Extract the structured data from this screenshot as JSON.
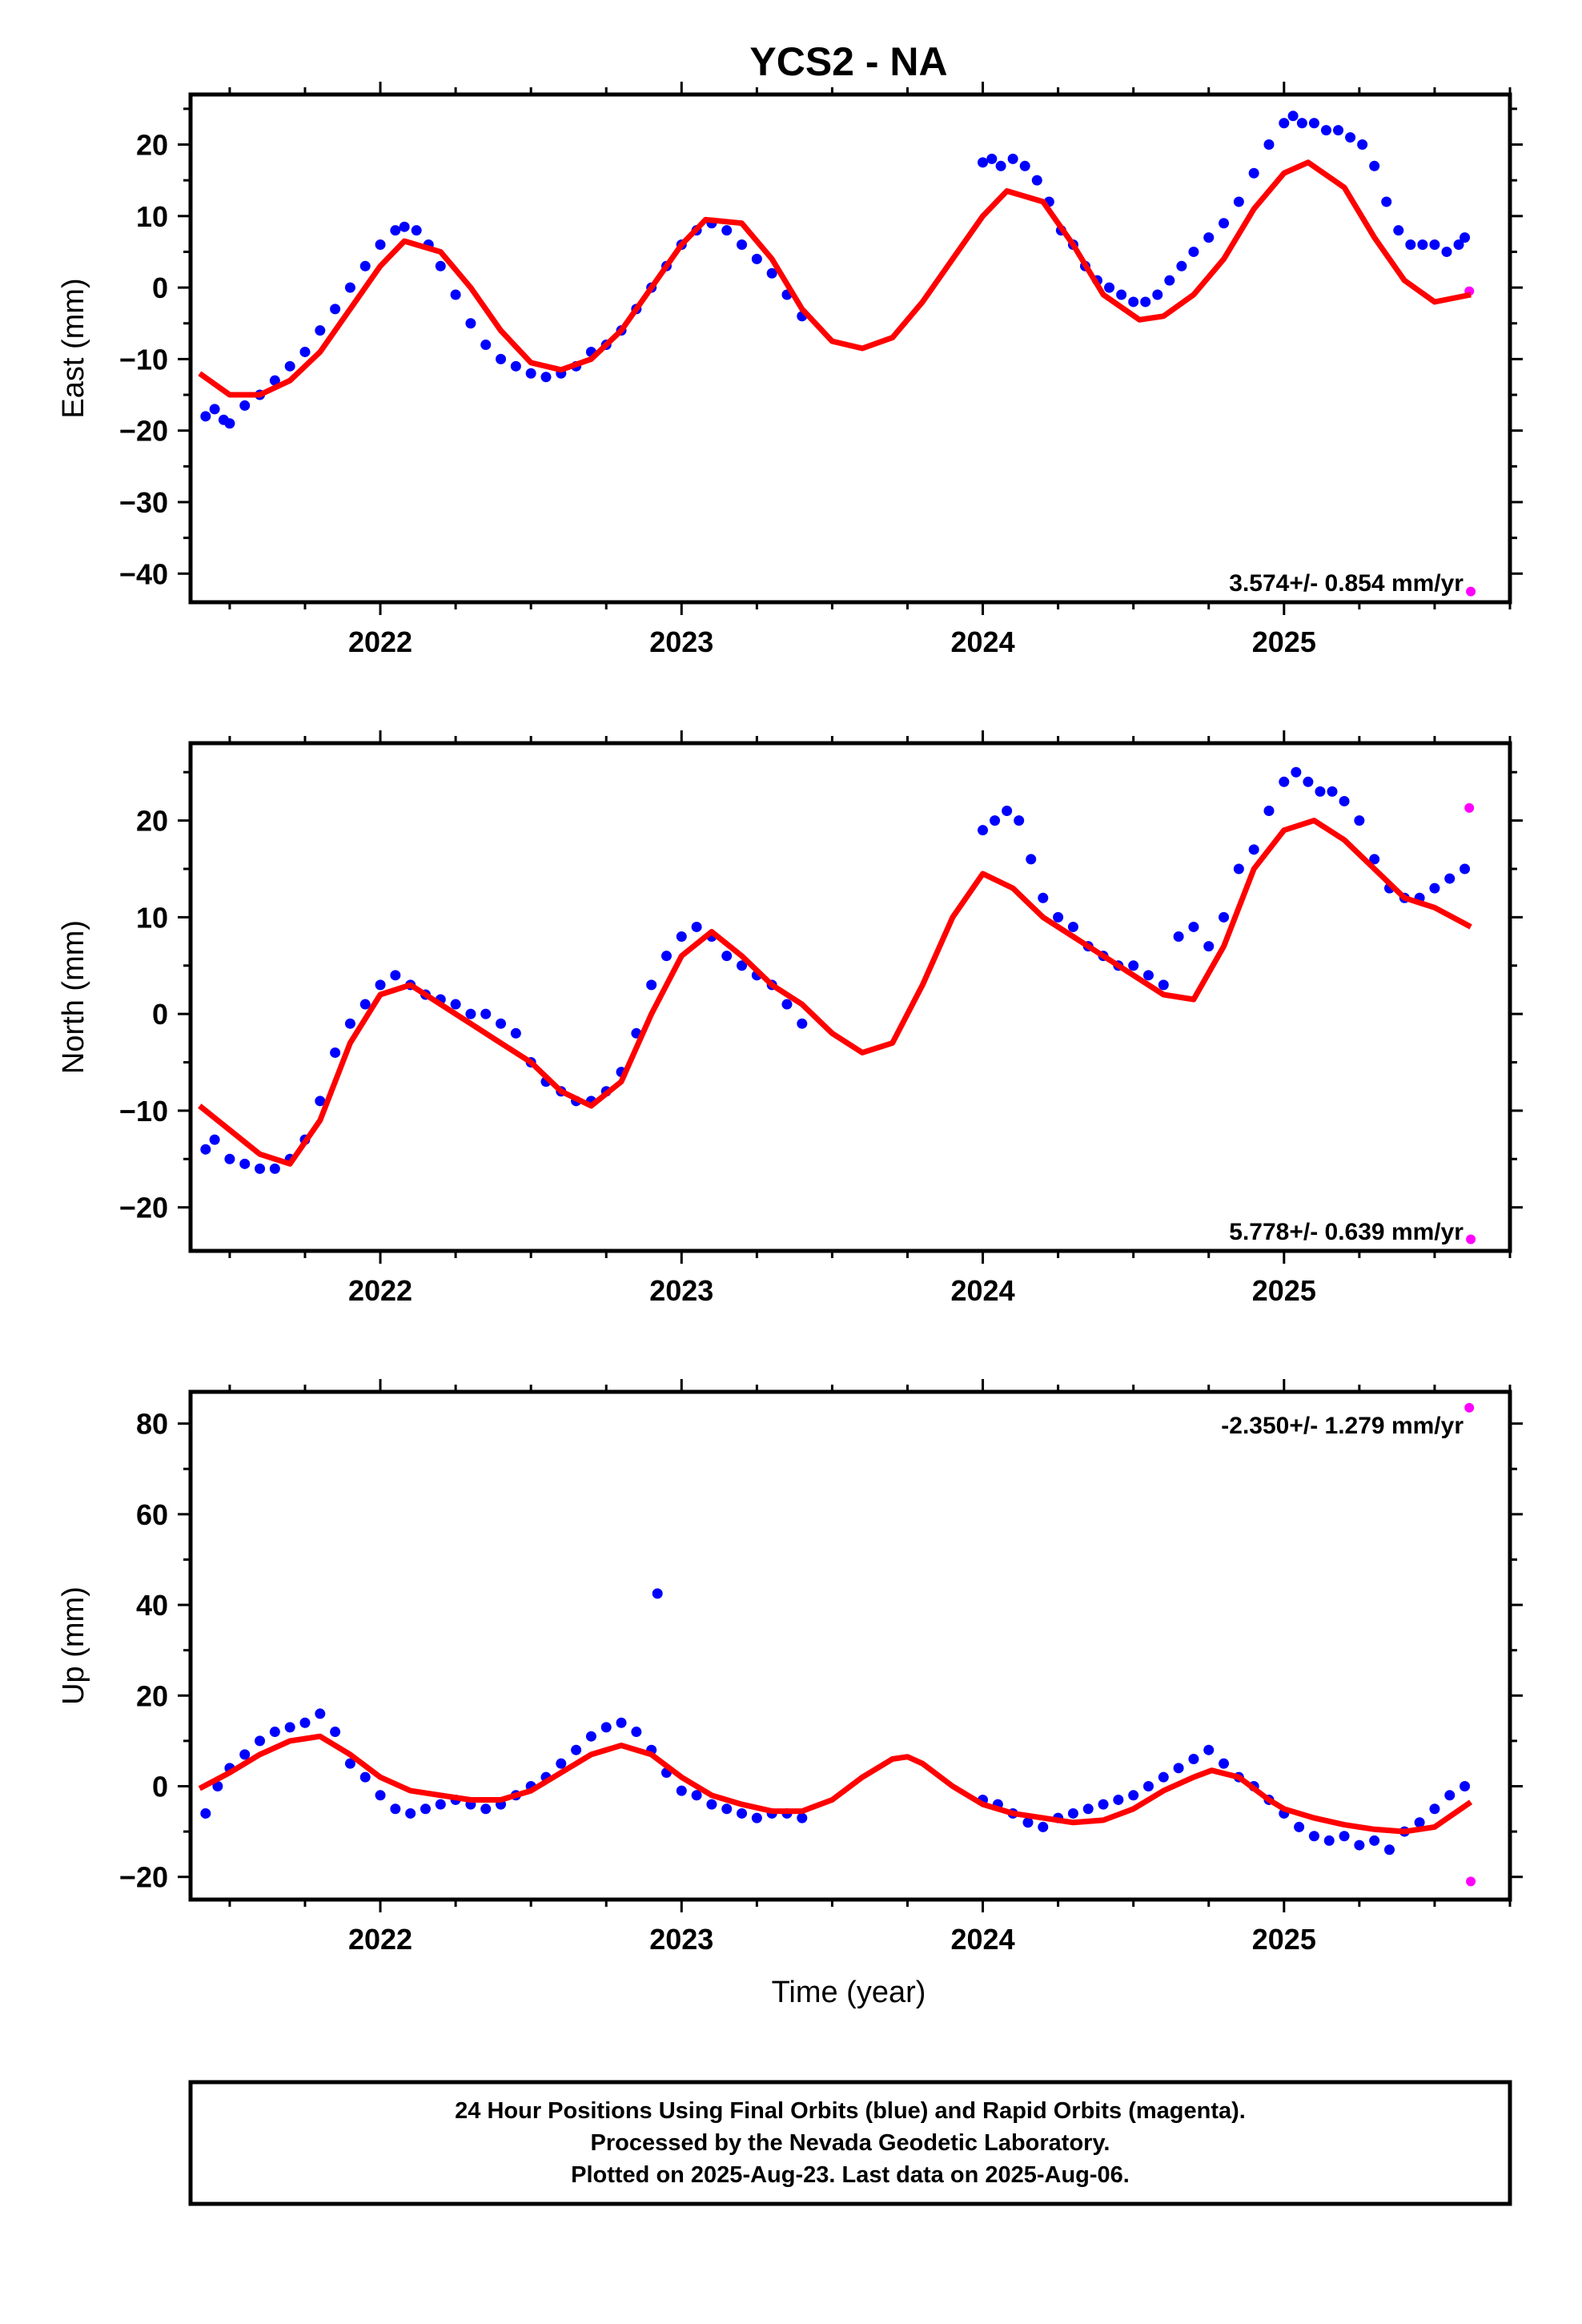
{
  "figure": {
    "title": "YCS2 - NA",
    "x_axis_title": "Time (year)",
    "colors": {
      "final": "#0000ff",
      "rapid": "#ff00ff",
      "fit": "#ff0000"
    }
  },
  "footer": {
    "line1": "24 Hour Positions Using Final Orbits (blue) and Rapid Orbits (magenta).",
    "line2": "Processed by the Nevada Geodetic Laboratory.",
    "line3": "Plotted on 2025-Aug-23. Last data on 2025-Aug-06."
  },
  "chart_data": [
    {
      "type": "scatter",
      "component": "east",
      "ylabel": "East (mm)",
      "rate_label": "3.574+/- 0.854 mm/yr",
      "xlim": [
        2021.37,
        2025.75
      ],
      "ylim": [
        -44,
        27
      ],
      "xticks": [
        2022,
        2023,
        2024,
        2025
      ],
      "yticks": [
        20,
        10,
        0,
        -10,
        -20,
        -30,
        -40
      ],
      "series": [
        {
          "name": "Final Orbits (blue)",
          "color": "#0000ff",
          "x": [
            2021.42,
            2021.45,
            2021.48,
            2021.5,
            2021.55,
            2021.6,
            2021.65,
            2021.7,
            2021.75,
            2021.8,
            2021.85,
            2021.9,
            2021.95,
            2022.0,
            2022.05,
            2022.08,
            2022.12,
            2022.16,
            2022.2,
            2022.25,
            2022.3,
            2022.35,
            2022.4,
            2022.45,
            2022.5,
            2022.55,
            2022.6,
            2022.65,
            2022.7,
            2022.75,
            2022.8,
            2022.85,
            2022.9,
            2022.95,
            2023.0,
            2023.05,
            2023.1,
            2023.15,
            2023.2,
            2023.25,
            2023.3,
            2023.35,
            2023.4,
            2024.0,
            2024.03,
            2024.06,
            2024.1,
            2024.14,
            2024.18,
            2024.22,
            2024.26,
            2024.3,
            2024.34,
            2024.38,
            2024.42,
            2024.46,
            2024.5,
            2024.54,
            2024.58,
            2024.62,
            2024.66,
            2024.7,
            2024.75,
            2024.8,
            2024.85,
            2024.9,
            2024.95,
            2025.0,
            2025.03,
            2025.06,
            2025.1,
            2025.14,
            2025.18,
            2025.22,
            2025.26,
            2025.3,
            2025.34,
            2025.38,
            2025.42,
            2025.46,
            2025.5,
            2025.54,
            2025.58,
            2025.6
          ],
          "y": [
            -18,
            -17,
            -18.5,
            -19,
            -16.5,
            -15,
            -13,
            -11,
            -9,
            -6,
            -3,
            0,
            3,
            6,
            8,
            8.5,
            8,
            6,
            3,
            -1,
            -5,
            -8,
            -10,
            -11,
            -12,
            -12.5,
            -12,
            -11,
            -9,
            -8,
            -6,
            -3,
            0,
            3,
            6,
            8,
            9,
            8,
            6,
            4,
            2,
            -1,
            -4,
            17.5,
            18,
            17,
            18,
            17,
            15,
            12,
            8,
            6,
            3,
            1,
            0,
            -1,
            -2,
            -2,
            -1,
            1,
            3,
            5,
            7,
            9,
            12,
            16,
            20,
            23,
            24,
            23,
            23,
            22,
            22,
            21,
            20,
            17,
            12,
            8,
            6,
            6,
            6,
            5,
            6,
            7
          ]
        },
        {
          "name": "Rapid Orbits (magenta)",
          "color": "#ff00ff",
          "x": [
            2025.615,
            2025.62
          ],
          "y": [
            -0.5,
            -42.5
          ]
        }
      ],
      "fit": {
        "x": [
          2021.4,
          2021.5,
          2021.6,
          2021.7,
          2021.8,
          2021.9,
          2022.0,
          2022.08,
          2022.2,
          2022.3,
          2022.4,
          2022.5,
          2022.6,
          2022.7,
          2022.8,
          2022.9,
          2023.0,
          2023.08,
          2023.2,
          2023.3,
          2023.4,
          2023.5,
          2023.6,
          2023.7,
          2023.8,
          2023.9,
          2024.0,
          2024.08,
          2024.2,
          2024.3,
          2024.4,
          2024.52,
          2024.6,
          2024.7,
          2024.8,
          2024.9,
          2025.0,
          2025.08,
          2025.2,
          2025.3,
          2025.4,
          2025.5,
          2025.62
        ],
        "y": [
          -12,
          -15,
          -15,
          -13,
          -9,
          -3,
          3,
          6.5,
          5,
          0,
          -6,
          -10.5,
          -11.5,
          -10,
          -6,
          0,
          6,
          9.5,
          9,
          4,
          -3,
          -7.5,
          -8.5,
          -7,
          -2,
          4,
          10,
          13.5,
          12,
          6,
          -1,
          -4.5,
          -4,
          -1,
          4,
          11,
          16,
          17.5,
          14,
          7,
          1,
          -2,
          -1
        ]
      }
    },
    {
      "type": "scatter",
      "component": "north",
      "ylabel": "North (mm)",
      "rate_label": "5.778+/- 0.639 mm/yr",
      "xlim": [
        2021.37,
        2025.75
      ],
      "ylim": [
        -24.5,
        28
      ],
      "xticks": [
        2022,
        2023,
        2024,
        2025
      ],
      "yticks": [
        20,
        10,
        0,
        -10,
        -20
      ],
      "series": [
        {
          "name": "Final Orbits (blue)",
          "color": "#0000ff",
          "x": [
            2021.42,
            2021.45,
            2021.5,
            2021.55,
            2021.6,
            2021.65,
            2021.7,
            2021.75,
            2021.8,
            2021.85,
            2021.9,
            2021.95,
            2022.0,
            2022.05,
            2022.1,
            2022.15,
            2022.2,
            2022.25,
            2022.3,
            2022.35,
            2022.4,
            2022.45,
            2022.5,
            2022.55,
            2022.6,
            2022.65,
            2022.7,
            2022.75,
            2022.8,
            2022.85,
            2022.9,
            2022.95,
            2023.0,
            2023.05,
            2023.1,
            2023.15,
            2023.2,
            2023.25,
            2023.3,
            2023.35,
            2023.4,
            2024.0,
            2024.04,
            2024.08,
            2024.12,
            2024.16,
            2024.2,
            2024.25,
            2024.3,
            2024.35,
            2024.4,
            2024.45,
            2024.5,
            2024.55,
            2024.6,
            2024.65,
            2024.7,
            2024.75,
            2024.8,
            2024.85,
            2024.9,
            2024.95,
            2025.0,
            2025.04,
            2025.08,
            2025.12,
            2025.16,
            2025.2,
            2025.25,
            2025.3,
            2025.35,
            2025.4,
            2025.45,
            2025.5,
            2025.55,
            2025.6
          ],
          "y": [
            -14,
            -13,
            -15,
            -15.5,
            -16,
            -16,
            -15,
            -13,
            -9,
            -4,
            -1,
            1,
            3,
            4,
            3,
            2,
            1.5,
            1,
            0,
            0,
            -1,
            -2,
            -5,
            -7,
            -8,
            -9,
            -9,
            -8,
            -6,
            -2,
            3,
            6,
            8,
            9,
            8,
            6,
            5,
            4,
            3,
            1,
            -1,
            19,
            20,
            21,
            20,
            16,
            12,
            10,
            9,
            7,
            6,
            5,
            5,
            4,
            3,
            8,
            9,
            7,
            10,
            15,
            17,
            21,
            24,
            25,
            24,
            23,
            23,
            22,
            20,
            16,
            13,
            12,
            12,
            13,
            14,
            15
          ]
        },
        {
          "name": "Rapid Orbits (magenta)",
          "color": "#ff00ff",
          "x": [
            2025.615,
            2025.62
          ],
          "y": [
            21.3,
            -23.3
          ]
        }
      ],
      "fit": {
        "x": [
          2021.4,
          2021.5,
          2021.6,
          2021.7,
          2021.8,
          2021.9,
          2022.0,
          2022.1,
          2022.2,
          2022.3,
          2022.4,
          2022.5,
          2022.6,
          2022.7,
          2022.8,
          2022.9,
          2023.0,
          2023.1,
          2023.2,
          2023.3,
          2023.4,
          2023.5,
          2023.6,
          2023.7,
          2023.8,
          2023.9,
          2024.0,
          2024.1,
          2024.2,
          2024.3,
          2024.4,
          2024.5,
          2024.6,
          2024.7,
          2024.8,
          2024.9,
          2025.0,
          2025.1,
          2025.2,
          2025.3,
          2025.4,
          2025.5,
          2025.62
        ],
        "y": [
          -9.5,
          -12,
          -14.5,
          -15.5,
          -11,
          -3,
          2,
          3,
          1,
          -1,
          -3,
          -5,
          -8,
          -9.5,
          -7,
          0,
          6,
          8.5,
          6,
          3,
          1,
          -2,
          -4,
          -3,
          3,
          10,
          14.5,
          13,
          10,
          8,
          6,
          4,
          2,
          1.5,
          7,
          15,
          19,
          20,
          18,
          15,
          12,
          11,
          9
        ]
      }
    },
    {
      "type": "scatter",
      "component": "up",
      "ylabel": "Up (mm)",
      "rate_label": "-2.350+/- 1.279 mm/yr",
      "xlim": [
        2021.37,
        2025.75
      ],
      "ylim": [
        -25,
        87
      ],
      "xticks": [
        2022,
        2023,
        2024,
        2025
      ],
      "yticks": [
        80,
        60,
        40,
        20,
        0,
        -20
      ],
      "series": [
        {
          "name": "Final Orbits (blue)",
          "color": "#0000ff",
          "x": [
            2021.42,
            2021.46,
            2021.5,
            2021.55,
            2021.6,
            2021.65,
            2021.7,
            2021.75,
            2021.8,
            2021.85,
            2021.9,
            2021.95,
            2022.0,
            2022.05,
            2022.1,
            2022.15,
            2022.2,
            2022.25,
            2022.3,
            2022.35,
            2022.4,
            2022.45,
            2022.5,
            2022.55,
            2022.6,
            2022.65,
            2022.7,
            2022.75,
            2022.8,
            2022.85,
            2022.9,
            2022.92,
            2022.95,
            2023.0,
            2023.05,
            2023.1,
            2023.15,
            2023.2,
            2023.25,
            2023.3,
            2023.35,
            2023.4,
            2024.0,
            2024.05,
            2024.1,
            2024.15,
            2024.2,
            2024.25,
            2024.3,
            2024.35,
            2024.4,
            2024.45,
            2024.5,
            2024.55,
            2024.6,
            2024.65,
            2024.7,
            2024.75,
            2024.8,
            2024.85,
            2024.9,
            2024.95,
            2025.0,
            2025.05,
            2025.1,
            2025.15,
            2025.2,
            2025.25,
            2025.3,
            2025.35,
            2025.4,
            2025.45,
            2025.5,
            2025.55,
            2025.6
          ],
          "y": [
            -6,
            0,
            4,
            7,
            10,
            12,
            13,
            14,
            16,
            12,
            5,
            2,
            -2,
            -5,
            -6,
            -5,
            -4,
            -3,
            -4,
            -5,
            -4,
            -2,
            0,
            2,
            5,
            8,
            11,
            13,
            14,
            12,
            8,
            42.5,
            3,
            -1,
            -2,
            -4,
            -5,
            -6,
            -7,
            -6,
            -6,
            -7,
            -3,
            -4,
            -6,
            -8,
            -9,
            -7,
            -6,
            -5,
            -4,
            -3,
            -2,
            0,
            2,
            4,
            6,
            8,
            5,
            2,
            0,
            -3,
            -6,
            -9,
            -11,
            -12,
            -11,
            -13,
            -12,
            -14,
            -10,
            -8,
            -5,
            -2,
            0
          ]
        },
        {
          "name": "Rapid Orbits (magenta)",
          "color": "#ff00ff",
          "x": [
            2025.615,
            2025.62
          ],
          "y": [
            83.5,
            -21
          ]
        }
      ],
      "fit": {
        "x": [
          2021.4,
          2021.5,
          2021.6,
          2021.7,
          2021.8,
          2021.9,
          2022.0,
          2022.1,
          2022.2,
          2022.3,
          2022.4,
          2022.5,
          2022.6,
          2022.7,
          2022.8,
          2022.9,
          2023.0,
          2023.1,
          2023.2,
          2023.3,
          2023.4,
          2023.5,
          2023.6,
          2023.7,
          2023.75,
          2023.8,
          2023.9,
          2024.0,
          2024.1,
          2024.2,
          2024.3,
          2024.4,
          2024.5,
          2024.6,
          2024.7,
          2024.76,
          2024.85,
          2024.95,
          2025.0,
          2025.1,
          2025.2,
          2025.3,
          2025.4,
          2025.5,
          2025.62
        ],
        "y": [
          -0.5,
          3,
          7,
          10,
          11,
          7,
          2,
          -1,
          -2,
          -3,
          -3,
          -1,
          3,
          7,
          9,
          7,
          2,
          -2,
          -4,
          -5.5,
          -5.5,
          -3,
          2,
          6,
          6.5,
          5,
          0,
          -4,
          -6,
          -7,
          -8,
          -7.5,
          -5,
          -1,
          2,
          3.5,
          2,
          -3,
          -5,
          -7,
          -8.5,
          -9.5,
          -10,
          -9,
          -3.5
        ]
      }
    }
  ]
}
